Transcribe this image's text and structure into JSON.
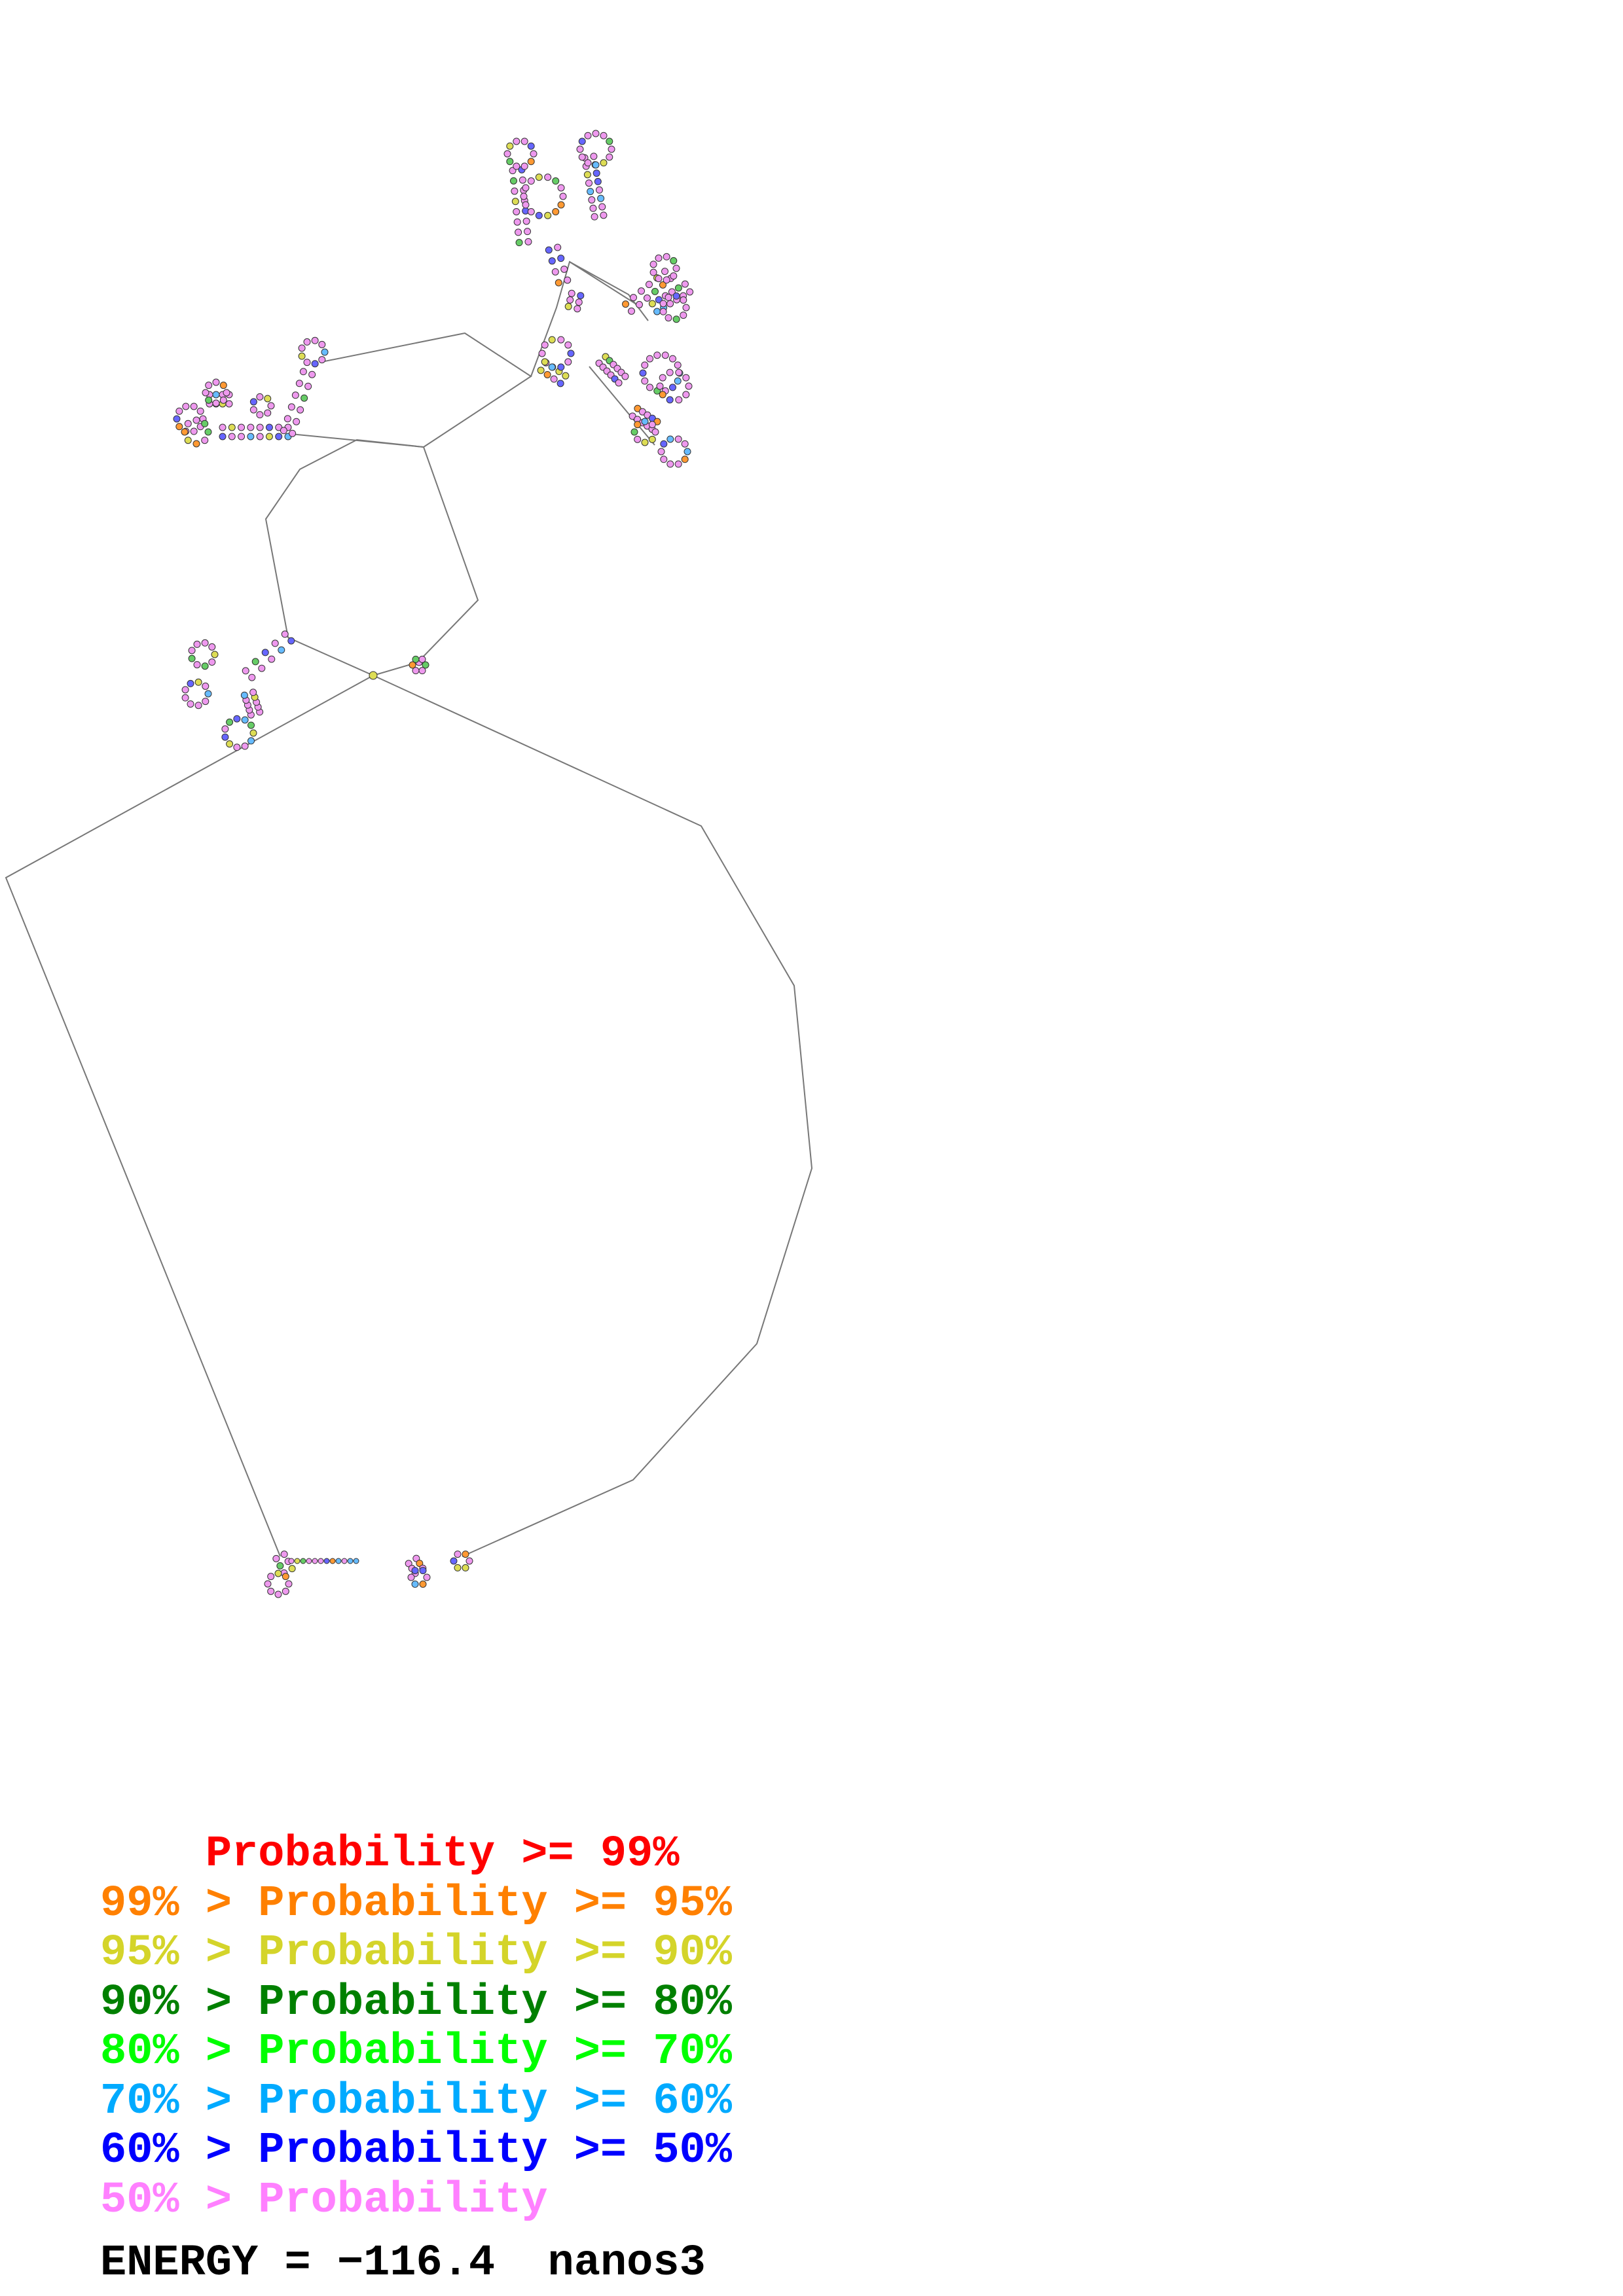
{
  "legend": [
    {
      "prefix": "    ",
      "text": "Probability >= 99%",
      "color": "#ff0000"
    },
    {
      "prefix": "99% > ",
      "text": "Probability >= 95%",
      "color": "#ff8000"
    },
    {
      "prefix": "95% > ",
      "text": "Probability >= 90%",
      "color": "#d4d42a"
    },
    {
      "prefix": "90% > ",
      "text": "Probability >= 80%",
      "color": "#008000"
    },
    {
      "prefix": "80% > ",
      "text": "Probability >= 70%",
      "color": "#00ff00"
    },
    {
      "prefix": "70% > ",
      "text": "Probability >= 60%",
      "color": "#00aaff"
    },
    {
      "prefix": "60% > ",
      "text": "Probability >= 50%",
      "color": "#0000ff"
    },
    {
      "prefix": "50% > ",
      "text": "Probability",
      "color": "#ff80ff"
    }
  ],
  "energy_label": "ENERGY = −116.4",
  "sequence_name": "nanos3",
  "base_colors": [
    "#ee99ee",
    "#66cc66",
    "#66bbff",
    "#6666ff",
    "#dddd55",
    "#ff9933",
    "#ff3333"
  ]
}
